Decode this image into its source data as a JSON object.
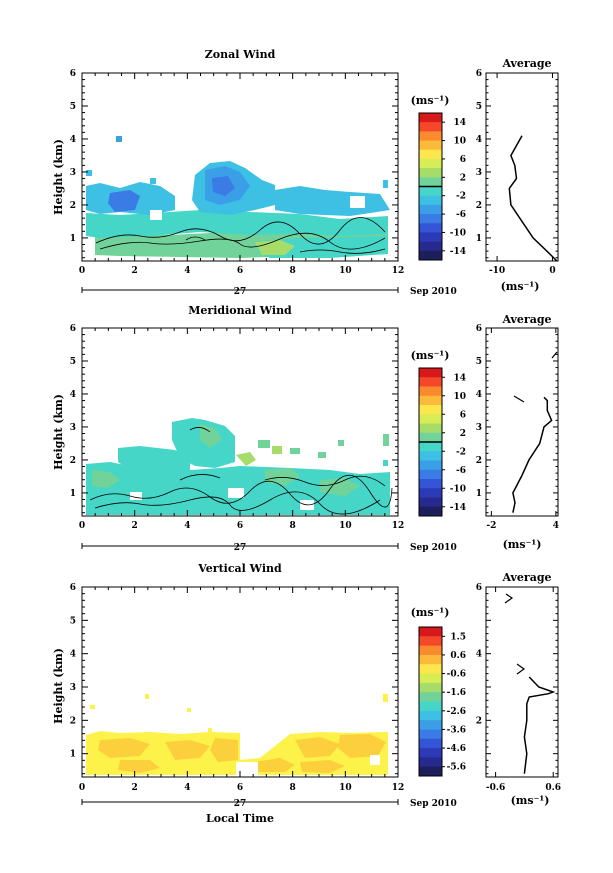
{
  "panels": [
    {
      "key": "zonal",
      "title": "Zonal Wind",
      "ylabel": "Height (km)",
      "ylim": [
        0.3,
        6
      ],
      "xlim": [
        0,
        12
      ],
      "xticks": [
        "0",
        "2",
        "4",
        "6",
        "8",
        "10",
        "12"
      ],
      "yticks": [
        "1",
        "2",
        "3",
        "4",
        "5",
        "6"
      ],
      "day_label": "27",
      "date_label": "Sep 2010",
      "colorbar": {
        "unit": "(ms⁻¹)",
        "labels": [
          "14",
          "10",
          "6",
          "2",
          "-2",
          "-6",
          "-10",
          "-14"
        ],
        "marker_index": 4
      },
      "avg_title": "Average",
      "avg_xticks": [
        "-10",
        "0"
      ],
      "avg_xlim": [
        -12,
        1
      ],
      "avg_unit": "(ms⁻¹)",
      "avg_yticks": [
        "1",
        "2",
        "3",
        "4",
        "5",
        "6"
      ]
    },
    {
      "key": "meridional",
      "title": "Meridional Wind",
      "ylabel": "Height (km)",
      "ylim": [
        0.3,
        6
      ],
      "xlim": [
        0,
        12
      ],
      "xticks": [
        "0",
        "2",
        "4",
        "6",
        "8",
        "10",
        "12"
      ],
      "yticks": [
        "1",
        "2",
        "3",
        "4",
        "5",
        "6"
      ],
      "day_label": "27",
      "date_label": "Sep 2010",
      "colorbar": {
        "unit": "(ms⁻¹)",
        "labels": [
          "14",
          "10",
          "6",
          "2",
          "-2",
          "-6",
          "-10",
          "-14"
        ],
        "marker_index": 4
      },
      "avg_title": "Average",
      "avg_xticks": [
        "-2",
        "4"
      ],
      "avg_xlim": [
        -2.5,
        4.2
      ],
      "avg_unit": "(ms⁻¹)",
      "avg_yticks": [
        "1",
        "2",
        "3",
        "4",
        "5",
        "6"
      ]
    },
    {
      "key": "vertical",
      "title": "Vertical Wind",
      "ylabel": "Height (km)",
      "ylim": [
        0.3,
        6
      ],
      "xlim": [
        0,
        12
      ],
      "xticks": [
        "0",
        "2",
        "4",
        "6",
        "8",
        "10",
        "12"
      ],
      "yticks": [
        "1",
        "2",
        "3",
        "4",
        "5",
        "6"
      ],
      "day_label": "27",
      "date_label": "Sep 2010",
      "xlabel": "Local Time",
      "colorbar": {
        "unit": "(ms⁻¹)",
        "labels": [
          "1.5",
          "0.6",
          "-0.6",
          "-1.6",
          "-2.6",
          "-3.6",
          "-4.6",
          "-5.6"
        ],
        "marker_index": null
      },
      "avg_title": "Average",
      "avg_xticks": [
        "-0.6",
        "0.6"
      ],
      "avg_xlim": [
        -0.8,
        0.7
      ],
      "avg_unit": "(ms⁻¹)",
      "avg_yticks": [
        "2",
        "4",
        "6"
      ]
    }
  ],
  "colors": {
    "scale": [
      "#d7191c",
      "#f5472a",
      "#f98b2e",
      "#fcba3a",
      "#fde74c",
      "#d8ec56",
      "#a6dc6a",
      "#72d39a",
      "#45d6c7",
      "#3ec0e4",
      "#3b9fe8",
      "#3a7be6",
      "#3456d6",
      "#2d3ab8",
      "#262a8e",
      "#1c1f5c"
    ],
    "vertical_fill": "#fdf24a",
    "vertical_patch": "#fbd03c"
  },
  "chart_data": [
    {
      "type": "heatmap",
      "title": "Zonal Wind",
      "xlabel": "",
      "ylabel": "Height (km)",
      "xlim": [
        0,
        12
      ],
      "ylim": [
        0.3,
        6
      ],
      "colorbar_range": [
        -14,
        14
      ],
      "regions": [
        {
          "x": [
            0.1,
            11.8
          ],
          "y": [
            0.3,
            1.6
          ],
          "value": -3
        },
        {
          "x": [
            0.3,
            7.8
          ],
          "y": [
            1.4,
            3.1
          ],
          "value": -7
        },
        {
          "x": [
            4.2,
            6.3
          ],
          "y": [
            2.7,
            3.4
          ],
          "value": -8
        },
        {
          "x": [
            8.0,
            11.9
          ],
          "y": [
            1.2,
            2.0
          ],
          "value": -3
        },
        {
          "x": [
            1.2,
            1.5
          ],
          "y": [
            3.9,
            4.1
          ],
          "value": -7
        }
      ],
      "average_profile": {
        "height": [
          0.3,
          0.6,
          1.0,
          1.5,
          2.0,
          2.5,
          2.8,
          3.2,
          3.5,
          4.1
        ],
        "value": [
          0.8,
          -1.0,
          -3.5,
          -5.5,
          -7.5,
          -7.8,
          -6.5,
          -6.8,
          -7.5,
          -5.5
        ]
      }
    },
    {
      "type": "heatmap",
      "title": "Meridional Wind",
      "xlabel": "",
      "ylabel": "Height (km)",
      "xlim": [
        0,
        12
      ],
      "ylim": [
        0.3,
        6
      ],
      "colorbar_range": [
        -14,
        14
      ],
      "regions": [
        {
          "x": [
            0.1,
            11.9
          ],
          "y": [
            0.3,
            1.7
          ],
          "value": -1
        },
        {
          "x": [
            1.0,
            6.3
          ],
          "y": [
            1.6,
            2.4
          ],
          "value": -1
        },
        {
          "x": [
            4.0,
            5.7
          ],
          "y": [
            2.3,
            3.4
          ],
          "value": -1
        },
        {
          "x": [
            6.5,
            10.0
          ],
          "y": [
            1.9,
            2.6
          ],
          "value": 2
        }
      ],
      "average_profile": {
        "height": [
          0.4,
          0.7,
          1.0,
          1.5,
          2.0,
          2.5,
          3.0,
          3.2,
          3.5,
          3.8,
          3.9
        ],
        "value": [
          0.0,
          0.2,
          0.0,
          0.8,
          1.5,
          2.5,
          2.9,
          3.6,
          3.2,
          3.2,
          2.9
        ]
      }
    },
    {
      "type": "heatmap",
      "title": "Vertical Wind",
      "xlabel": "Local Time",
      "ylabel": "Height (km)",
      "xlim": [
        0,
        12
      ],
      "ylim": [
        0.3,
        6
      ],
      "colorbar_range": [
        -5.6,
        1.5
      ],
      "regions": [
        {
          "x": [
            0.1,
            5.9
          ],
          "y": [
            0.3,
            1.7
          ],
          "value": 0.2
        },
        {
          "x": [
            6.0,
            11.8
          ],
          "y": [
            0.3,
            1.7
          ],
          "value": 0.3
        }
      ],
      "average_profile": {
        "height": [
          0.4,
          1.0,
          1.5,
          2.0,
          2.5,
          2.7,
          2.8,
          2.85,
          3.0,
          3.3
        ],
        "value": [
          0.0,
          0.05,
          0.0,
          0.05,
          0.05,
          0.1,
          0.5,
          0.6,
          0.3,
          0.1
        ]
      }
    }
  ]
}
